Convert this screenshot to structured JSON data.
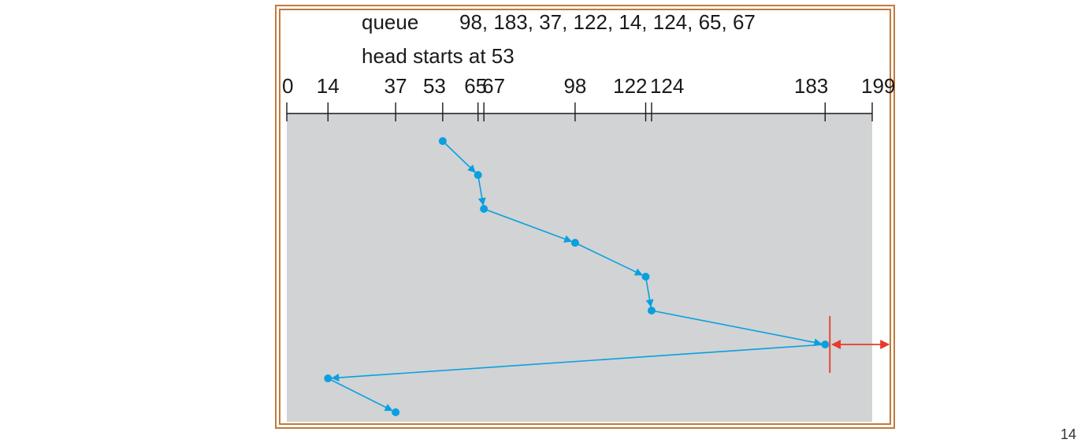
{
  "queue_label": "queue",
  "queue_values_text": "98, 183, 37, 122, 14, 124, 65, 67",
  "head_text": "head starts at 53",
  "axis": {
    "min": 0,
    "max": 199,
    "ticks": [
      0,
      14,
      37,
      53,
      65,
      67,
      98,
      122,
      124,
      183,
      199
    ],
    "tick_labels": [
      "0",
      "14",
      "37",
      "53",
      "65",
      "67",
      "98",
      "122",
      "124",
      "183",
      "199"
    ]
  },
  "service_order": [
    53,
    65,
    67,
    98,
    122,
    124,
    183,
    14,
    37
  ],
  "colors": {
    "frame": "#c07a3c",
    "panel": "#d1d3d4",
    "path": "#0aa0e0",
    "marker": "#e8392a",
    "axis": "#1a1a1a"
  },
  "page_number": "14"
}
